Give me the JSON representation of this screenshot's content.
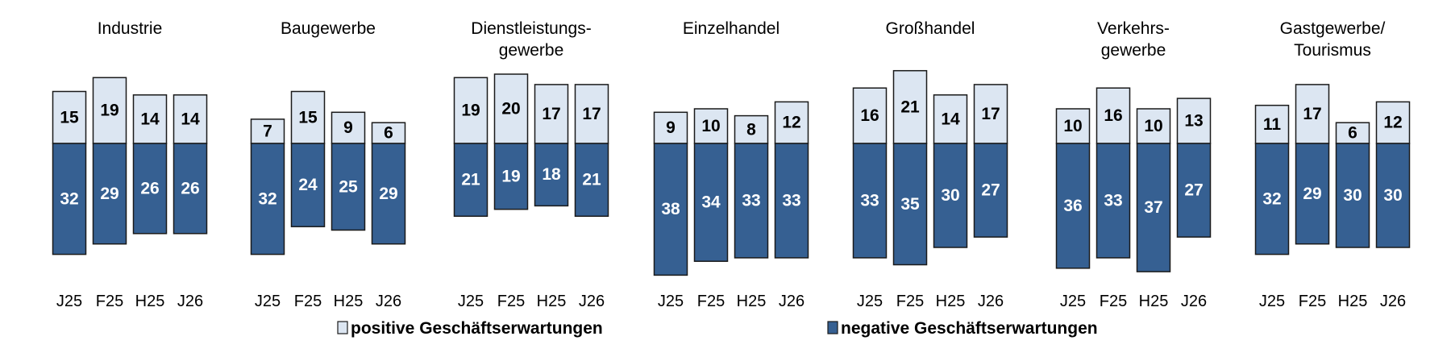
{
  "chart_data": {
    "type": "bar",
    "stacked": "diverging",
    "categories": [
      "J25",
      "F25",
      "H25",
      "J26"
    ],
    "colors": {
      "positive": "#dce6f2",
      "negative": "#366092",
      "border": "#1a1a1a"
    },
    "legend": {
      "placement": "bottom",
      "positive": "positive Geschäftserwartungen",
      "negative": "negative Geschäftserwartungen"
    },
    "panels": [
      {
        "title": [
          "Industrie"
        ],
        "positive": [
          15,
          19,
          14,
          14
        ],
        "negative": [
          32,
          29,
          26,
          26
        ]
      },
      {
        "title": [
          "Baugewerbe"
        ],
        "positive": [
          7,
          15,
          9,
          6
        ],
        "negative": [
          32,
          24,
          25,
          29
        ]
      },
      {
        "title": [
          "Dienstleistungs-",
          "gewerbe"
        ],
        "positive": [
          19,
          20,
          17,
          17
        ],
        "negative": [
          21,
          19,
          18,
          21
        ]
      },
      {
        "title": [
          "Einzelhandel"
        ],
        "positive": [
          9,
          10,
          8,
          12
        ],
        "negative": [
          38,
          34,
          33,
          33
        ]
      },
      {
        "title": [
          "Großhandel"
        ],
        "positive": [
          16,
          21,
          14,
          17
        ],
        "negative": [
          33,
          35,
          30,
          27
        ]
      },
      {
        "title": [
          "Verkehrs-",
          "gewerbe"
        ],
        "positive": [
          10,
          16,
          10,
          13
        ],
        "negative": [
          36,
          33,
          37,
          27
        ]
      },
      {
        "title": [
          "Gastgewerbe/",
          "Tourismus"
        ],
        "positive": [
          11,
          17,
          6,
          12
        ],
        "negative": [
          32,
          29,
          30,
          30
        ]
      }
    ]
  }
}
